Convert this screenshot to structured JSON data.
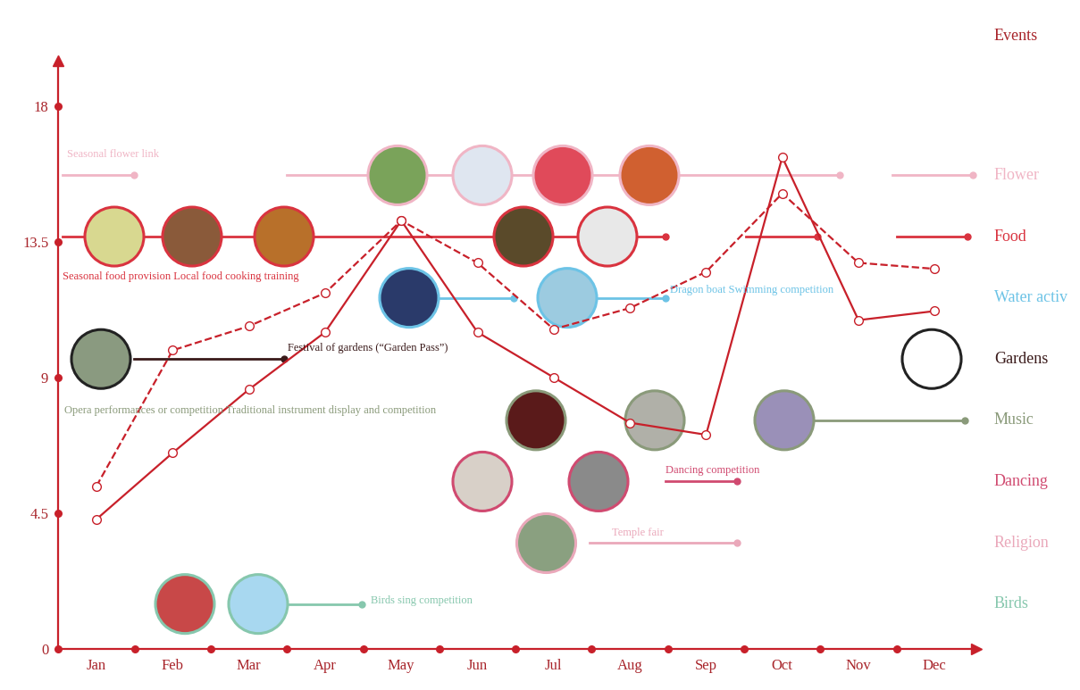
{
  "chart_data": {
    "type": "line",
    "categories": [
      "Jan",
      "Feb",
      "Mar",
      "Apr",
      "May",
      "Jun",
      "Jul",
      "Aug",
      "Sep",
      "Oct",
      "Nov",
      "Dec"
    ],
    "ylim": [
      0,
      19.5
    ],
    "yticks": [
      0,
      4.5,
      9,
      13.5,
      18
    ],
    "series": [
      {
        "color": "#c8202a",
        "line_style": "solid",
        "marker": "o",
        "values": [
          4.3,
          6.5,
          8.6,
          10.5,
          14.2,
          10.5,
          9.0,
          7.5,
          7.1,
          16.3,
          10.9,
          11.2
        ]
      },
      {
        "color": "#c8202a",
        "line_style": "dashed",
        "marker": "o",
        "values": [
          5.4,
          9.9,
          10.7,
          11.8,
          14.2,
          12.8,
          10.6,
          11.3,
          12.5,
          15.1,
          12.8,
          12.6
        ]
      }
    ],
    "events_title": "Events",
    "events": [
      {
        "name": "Flower",
        "color": "#f0b5c5",
        "annotation": "Seasonal flower link",
        "spans": [
          [
            -0.45,
            0.49
          ],
          [
            2.5,
            9.75
          ],
          [
            10.45,
            11.5
          ]
        ]
      },
      {
        "name": "Food",
        "color": "#d9333f",
        "annotation": "Seasonal food provision Local food cooking training",
        "spans": [
          [
            -0.45,
            7.47
          ],
          [
            8.52,
            9.46
          ],
          [
            10.5,
            11.43
          ]
        ]
      },
      {
        "name": "Water activ",
        "color": "#6cc3e6",
        "annotation": "Dragon boat Swimming competition",
        "spans": [
          [
            4.48,
            5.47
          ],
          [
            6.47,
            7.47
          ]
        ]
      },
      {
        "name": "Gardens",
        "color": "#3a1a1a",
        "annotation": "Festival of gardens (“Garden Pass”)",
        "spans": [
          [
            0.49,
            2.46
          ]
        ]
      },
      {
        "name": "Music",
        "color": "#8a9a7a",
        "annotation": "Opera performances or competition Traditional instrument display and competition",
        "spans": [
          [
            9.4,
            11.4
          ]
        ]
      },
      {
        "name": "Dancing",
        "color": "#d04a70",
        "annotation": "Dancing competition",
        "spans": [
          [
            7.47,
            8.4
          ]
        ]
      },
      {
        "name": "Religion",
        "color": "#eaa8ba",
        "annotation": "Temple fair",
        "spans": [
          [
            6.47,
            8.4
          ]
        ]
      },
      {
        "name": "Birds",
        "color": "#86c7ad",
        "annotation": "Birds sing competition",
        "spans": [
          [
            2.49,
            3.48
          ]
        ]
      }
    ]
  }
}
